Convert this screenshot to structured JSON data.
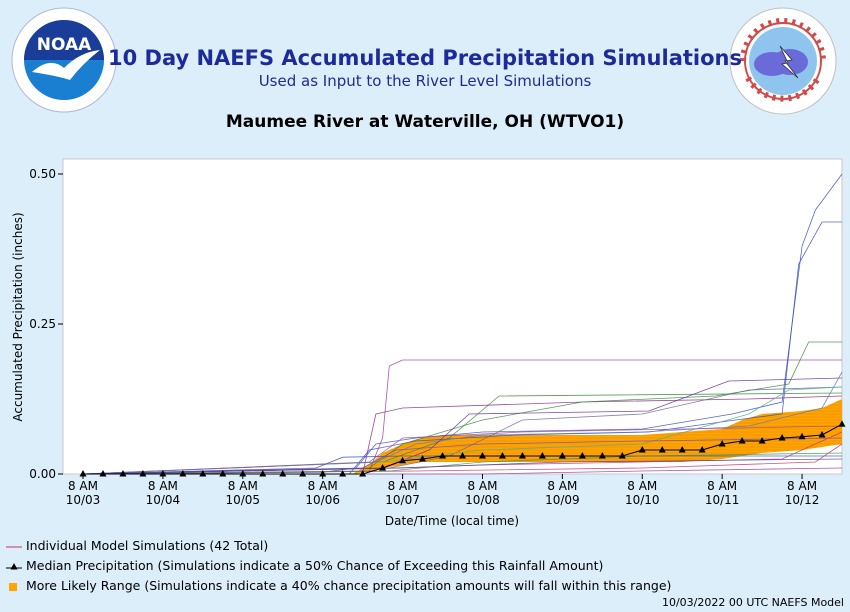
{
  "header": {
    "title": "10 Day NAEFS Accumulated Precipitation Simulations",
    "subtitle": "Used as Input to the River Level Simulations",
    "station": "Maumee River at Waterville, OH (WTVO1)"
  },
  "logos": {
    "noaa": {
      "text": "NOAA",
      "icon": "noaa-seagull-icon"
    },
    "nws": {
      "icon": "nws-cloud-lightning-icon"
    }
  },
  "legend": {
    "individual": "Individual Model Simulations (42 Total)",
    "median": "Median Precipitation (Simulations indicate a 50% Chance of Exceeding this Rainfall Amount)",
    "range": "More Likely Range (Simulations indicate a 40% chance precipitation amounts will fall within this range)"
  },
  "footer": "10/03/2022 00 UTC NAEFS Model",
  "colors": {
    "median": "#000000",
    "range": "#ffa500",
    "range_stripe": "#e07800",
    "individual": "#cc3366",
    "title": "#1c2b99"
  },
  "chart_data": {
    "type": "line",
    "xlabel": "Date/Time (local time)",
    "ylabel": "Accumulated Precipitation (inches)",
    "xlim": [
      0,
      228
    ],
    "ylim": [
      0,
      0.5
    ],
    "x_units": "hours since 10/03 8 AM",
    "y_ticks": [
      {
        "value": 0.0,
        "label": "0.00"
      },
      {
        "value": 0.25,
        "label": "0.25"
      },
      {
        "value": 0.5,
        "label": "0.50"
      }
    ],
    "x_ticks": [
      {
        "value": 0,
        "line1": "8 AM",
        "line2": "10/03"
      },
      {
        "value": 24,
        "line1": "8 AM",
        "line2": "10/04"
      },
      {
        "value": 48,
        "line1": "8 AM",
        "line2": "10/05"
      },
      {
        "value": 72,
        "line1": "8 AM",
        "line2": "10/06"
      },
      {
        "value": 96,
        "line1": "8 AM",
        "line2": "10/07"
      },
      {
        "value": 120,
        "line1": "8 AM",
        "line2": "10/08"
      },
      {
        "value": 144,
        "line1": "8 AM",
        "line2": "10/09"
      },
      {
        "value": 168,
        "line1": "8 AM",
        "line2": "10/10"
      },
      {
        "value": 192,
        "line1": "8 AM",
        "line2": "10/11"
      },
      {
        "value": 216,
        "line1": "8 AM",
        "line2": "10/12"
      }
    ],
    "range_band": {
      "x": [
        81,
        87,
        90,
        96,
        102,
        108,
        120,
        144,
        168,
        180,
        192,
        198,
        204,
        216,
        222,
        228
      ],
      "lower": [
        0.0,
        0.005,
        0.01,
        0.015,
        0.02,
        0.02,
        0.02,
        0.02,
        0.02,
        0.02,
        0.025,
        0.03,
        0.035,
        0.04,
        0.045,
        0.05
      ],
      "upper": [
        0.0,
        0.02,
        0.035,
        0.05,
        0.06,
        0.065,
        0.065,
        0.065,
        0.065,
        0.07,
        0.075,
        0.09,
        0.1,
        0.105,
        0.11,
        0.125
      ]
    },
    "median": {
      "x": [
        0,
        6,
        12,
        18,
        24,
        30,
        36,
        42,
        48,
        54,
        60,
        66,
        72,
        78,
        84,
        90,
        96,
        102,
        108,
        114,
        120,
        126,
        132,
        138,
        144,
        150,
        156,
        162,
        168,
        174,
        180,
        186,
        192,
        198,
        204,
        210,
        216,
        222,
        228
      ],
      "y": [
        0,
        0,
        0,
        0,
        0,
        0,
        0,
        0,
        0,
        0,
        0,
        0,
        0,
        0,
        0,
        0.01,
        0.022,
        0.025,
        0.03,
        0.03,
        0.03,
        0.03,
        0.03,
        0.03,
        0.03,
        0.03,
        0.03,
        0.03,
        0.04,
        0.04,
        0.04,
        0.04,
        0.05,
        0.055,
        0.055,
        0.06,
        0.062,
        0.065,
        0.083
      ]
    },
    "series": [
      {
        "color": "#3a4fc0",
        "points": [
          [
            0,
            0
          ],
          [
            72,
            0.003
          ],
          [
            82,
            0.01
          ],
          [
            88,
            0.05
          ],
          [
            100,
            0.06
          ],
          [
            120,
            0.07
          ],
          [
            168,
            0.075
          ],
          [
            195,
            0.1
          ],
          [
            210,
            0.12
          ],
          [
            216,
            0.38
          ],
          [
            220,
            0.44
          ],
          [
            228,
            0.5
          ]
        ]
      },
      {
        "color": "#3a4fc0",
        "points": [
          [
            0,
            0
          ],
          [
            80,
            0.0
          ],
          [
            86,
            0.04
          ],
          [
            100,
            0.055
          ],
          [
            130,
            0.065
          ],
          [
            170,
            0.07
          ],
          [
            196,
            0.09
          ],
          [
            210,
            0.1
          ],
          [
            215,
            0.35
          ],
          [
            222,
            0.42
          ],
          [
            228,
            0.42
          ]
        ]
      },
      {
        "color": "#9a3aa0",
        "points": [
          [
            0,
            0
          ],
          [
            86,
            0.005
          ],
          [
            90,
            0.06
          ],
          [
            92,
            0.18
          ],
          [
            96,
            0.19
          ],
          [
            110,
            0.19
          ],
          [
            228,
            0.19
          ]
        ]
      },
      {
        "color": "#8a2a8a",
        "points": [
          [
            0,
            0
          ],
          [
            84,
            0.0
          ],
          [
            88,
            0.1
          ],
          [
            96,
            0.11
          ],
          [
            150,
            0.12
          ],
          [
            200,
            0.125
          ],
          [
            228,
            0.13
          ]
        ]
      },
      {
        "color": "#3a8a3a",
        "points": [
          [
            0,
            0
          ],
          [
            86,
            0.01
          ],
          [
            96,
            0.05
          ],
          [
            120,
            0.09
          ],
          [
            150,
            0.12
          ],
          [
            190,
            0.13
          ],
          [
            212,
            0.15
          ],
          [
            218,
            0.22
          ],
          [
            228,
            0.22
          ]
        ]
      },
      {
        "color": "#3a8a3a",
        "points": [
          [
            0,
            0
          ],
          [
            90,
            0.02
          ],
          [
            110,
            0.06
          ],
          [
            125,
            0.13
          ],
          [
            228,
            0.135
          ]
        ]
      },
      {
        "color": "#6a2a9a",
        "points": [
          [
            0,
            0
          ],
          [
            90,
            0.01
          ],
          [
            104,
            0.04
          ],
          [
            116,
            0.1
          ],
          [
            170,
            0.105
          ],
          [
            194,
            0.155
          ],
          [
            228,
            0.16
          ]
        ]
      },
      {
        "color": "#6a6a9a",
        "points": [
          [
            0,
            0
          ],
          [
            92,
            0.01
          ],
          [
            110,
            0.03
          ],
          [
            132,
            0.09
          ],
          [
            168,
            0.1
          ],
          [
            200,
            0.14
          ],
          [
            228,
            0.145
          ]
        ]
      },
      {
        "color": "#5a7ac0",
        "points": [
          [
            0,
            0
          ],
          [
            88,
            0.02
          ],
          [
            100,
            0.05
          ],
          [
            120,
            0.065
          ],
          [
            168,
            0.07
          ],
          [
            200,
            0.08
          ],
          [
            222,
            0.11
          ],
          [
            228,
            0.17
          ]
        ]
      },
      {
        "color": "#cc3366",
        "points": [
          [
            0,
            0
          ],
          [
            96,
            0.01
          ],
          [
            120,
            0.015
          ],
          [
            168,
            0.02
          ],
          [
            210,
            0.025
          ],
          [
            228,
            0.07
          ]
        ]
      },
      {
        "color": "#cc3366",
        "points": [
          [
            0,
            0
          ],
          [
            100,
            0.005
          ],
          [
            168,
            0.01
          ],
          [
            220,
            0.02
          ],
          [
            228,
            0.05
          ]
        ]
      },
      {
        "color": "#55aa99",
        "points": [
          [
            0,
            0
          ],
          [
            90,
            0.02
          ],
          [
            120,
            0.04
          ],
          [
            168,
            0.05
          ],
          [
            200,
            0.1
          ],
          [
            212,
            0.14
          ],
          [
            228,
            0.145
          ]
        ]
      },
      {
        "color": "#a04a9a",
        "points": [
          [
            0,
            0
          ],
          [
            86,
            0.02
          ],
          [
            96,
            0.06
          ],
          [
            132,
            0.07
          ],
          [
            180,
            0.075
          ],
          [
            228,
            0.08
          ]
        ]
      },
      {
        "color": "#7a4ac0",
        "points": [
          [
            0,
            0
          ],
          [
            84,
            0.01
          ],
          [
            94,
            0.04
          ],
          [
            120,
            0.05
          ],
          [
            168,
            0.055
          ],
          [
            228,
            0.06
          ]
        ]
      },
      {
        "color": "#3a9a5a",
        "points": [
          [
            0,
            0
          ],
          [
            92,
            0.005
          ],
          [
            120,
            0.02
          ],
          [
            168,
            0.03
          ],
          [
            228,
            0.035
          ]
        ]
      },
      {
        "color": "#4a4aa0",
        "points": [
          [
            0,
            0
          ],
          [
            94,
            0.01
          ],
          [
            144,
            0.02
          ],
          [
            228,
            0.025
          ]
        ]
      },
      {
        "color": "#9a3aa0",
        "points": [
          [
            0,
            0
          ],
          [
            120,
            0.0
          ],
          [
            168,
            0.005
          ],
          [
            228,
            0.01
          ]
        ]
      },
      {
        "color": "#3a4fc0",
        "points": [
          [
            0,
            0
          ],
          [
            70,
            0.01
          ],
          [
            78,
            0.028
          ],
          [
            96,
            0.03
          ],
          [
            228,
            0.03
          ]
        ]
      }
    ]
  }
}
